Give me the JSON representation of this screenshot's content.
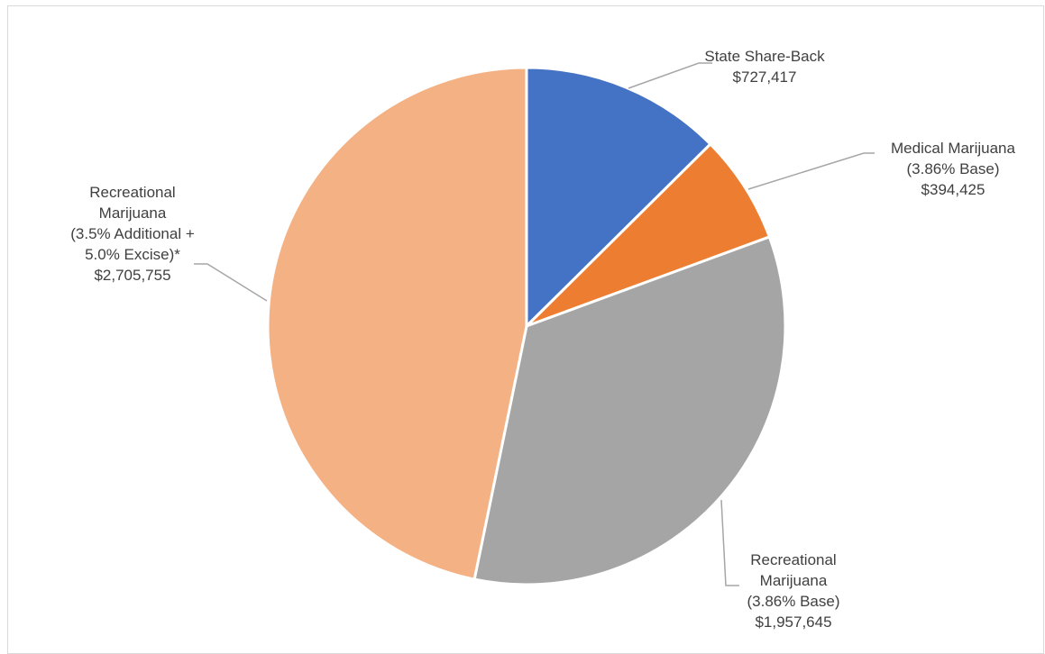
{
  "chart_data": {
    "type": "pie",
    "slices": [
      {
        "label_lines": [
          "State Share-Back"
        ],
        "value_text": "$727,417",
        "value": 727417,
        "color": "#4472C4"
      },
      {
        "label_lines": [
          "Medical Marijuana",
          "(3.86% Base)"
        ],
        "value_text": "$394,425",
        "value": 394425,
        "color": "#ED7D31"
      },
      {
        "label_lines": [
          "Recreational",
          "Marijuana",
          "(3.86% Base)"
        ],
        "value_text": "$1,957,645",
        "value": 1957645,
        "color": "#A5A5A5"
      },
      {
        "label_lines": [
          "Recreational",
          "Marijuana",
          "(3.5% Additional +",
          "5.0% Excise)*"
        ],
        "value_text": "$2,705,755",
        "value": 2705755,
        "color": "#F4B183"
      }
    ],
    "legend": "none",
    "data_labels": "outside-with-leader-lines"
  }
}
